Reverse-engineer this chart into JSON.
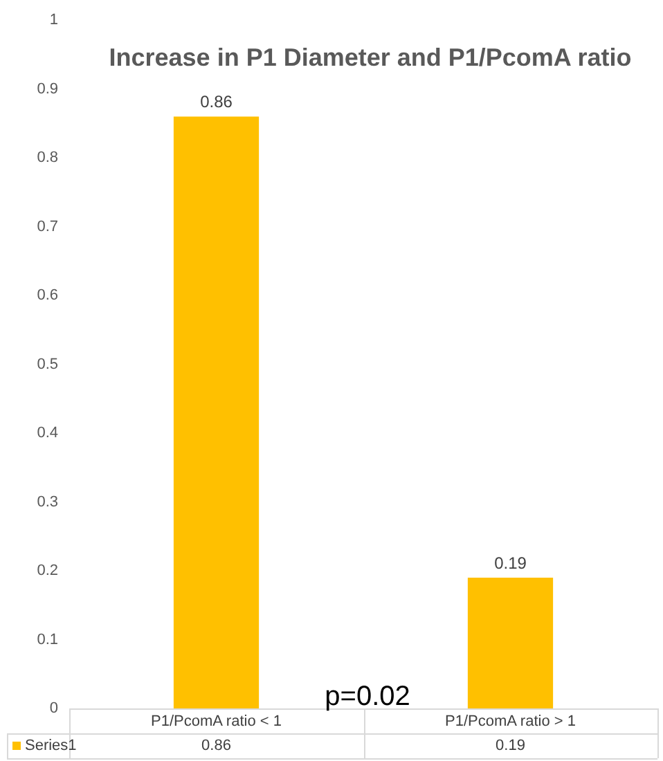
{
  "chart_data": {
    "type": "bar",
    "title": "Increase in P1 Diameter and P1/PcomA ratio",
    "categories": [
      "P1/PcomA ratio < 1",
      "P1/PcomA ratio > 1"
    ],
    "series": [
      {
        "name": "Series1",
        "color": "#ffc000",
        "values": [
          0.86,
          0.19
        ]
      }
    ],
    "ylim": [
      0,
      1
    ],
    "yticks": [
      0,
      0.1,
      0.2,
      0.3,
      0.4,
      0.5,
      0.6,
      0.7,
      0.8,
      0.9,
      1
    ],
    "grid": false,
    "legend": "bottom",
    "data_labels": true,
    "annotations": [
      "p=0.02",
      {
        "text": "0.86",
        "x": "P1/PcomA ratio < 1",
        "y": 0.86
      },
      {
        "text": "0.19",
        "x": "P1/PcomA ratio > 1",
        "y": 0.19
      }
    ]
  }
}
